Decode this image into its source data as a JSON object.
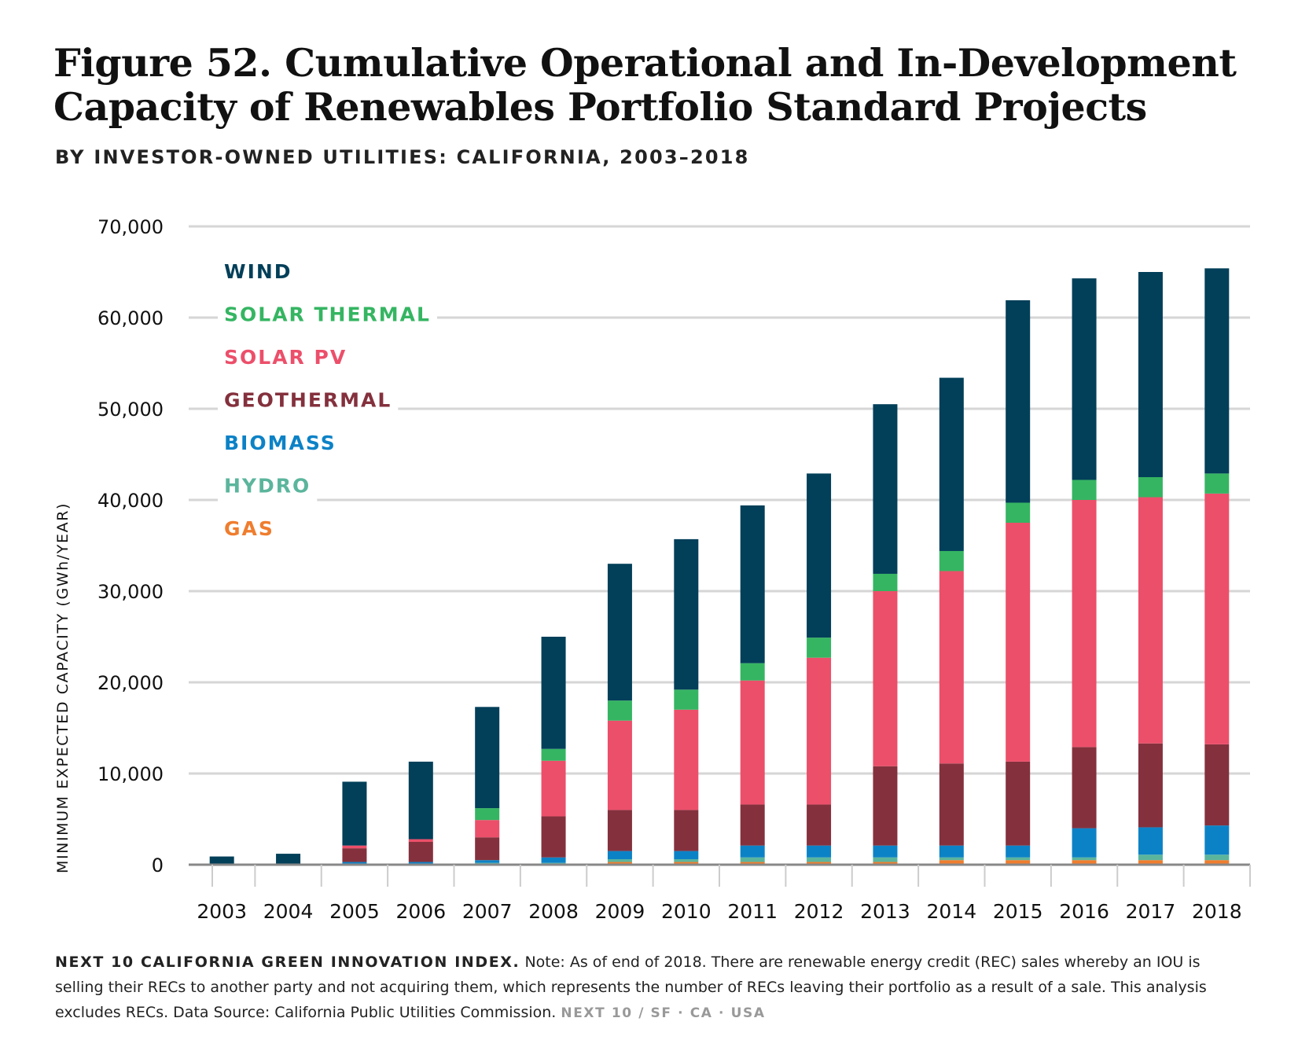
{
  "header": {
    "title_line1": "Figure 52. Cumulative Operational and In-Development",
    "title_line2": "Capacity of Renewables Portfolio Standard Projects",
    "subtitle": "BY INVESTOR-OWNED UTILITIES: CALIFORNIA, 2003–2018"
  },
  "footer": {
    "source_label": "NEXT 10 CALIFORNIA GREEN INNOVATION INDEX.",
    "note": "Note: As of end of 2018. There are renewable energy credit (REC) sales whereby an IOU is selling their RECs to another party and not acquiring them, which represents the number of RECs leaving their portfolio as a result of a sale. This analysis excludes RECs. Data Source: California Public Utilities Commission.",
    "brand": "NEXT 10 / SF · CA · USA"
  },
  "chart_data": {
    "type": "bar",
    "stacked": true,
    "title": "",
    "xlabel": "",
    "ylabel": "MINIMUM EXPECTED CAPACITY (GWh/YEAR)",
    "ylim": [
      0,
      70000
    ],
    "yticks": [
      0,
      10000,
      20000,
      30000,
      40000,
      50000,
      60000,
      70000
    ],
    "ytick_labels": [
      "0",
      "10,000",
      "20,000",
      "30,000",
      "40,000",
      "50,000",
      "60,000",
      "70,000"
    ],
    "grid": true,
    "legend_position": "top-left",
    "categories": [
      "2003",
      "2004",
      "2005",
      "2006",
      "2007",
      "2008",
      "2009",
      "2010",
      "2011",
      "2012",
      "2013",
      "2014",
      "2015",
      "2016",
      "2017",
      "2018"
    ],
    "series": [
      {
        "name": "GAS",
        "color": "#ef7d2e",
        "values": [
          0,
          0,
          0,
          0,
          0,
          0,
          300,
          300,
          300,
          300,
          300,
          500,
          500,
          500,
          500,
          500
        ]
      },
      {
        "name": "HYDRO",
        "color": "#5bb59c",
        "values": [
          0,
          0,
          0,
          0,
          200,
          200,
          300,
          300,
          500,
          500,
          500,
          300,
          300,
          300,
          600,
          600
        ]
      },
      {
        "name": "BIOMASS",
        "color": "#0c82c6",
        "values": [
          0,
          0,
          300,
          300,
          300,
          600,
          900,
          900,
          1300,
          1300,
          1300,
          1300,
          1300,
          3200,
          3000,
          3200
        ]
      },
      {
        "name": "GEOTHERMAL",
        "color": "#84313d",
        "values": [
          0,
          0,
          1500,
          2200,
          2500,
          4500,
          4500,
          4500,
          4500,
          4500,
          8700,
          9000,
          9200,
          8900,
          9200,
          8900
        ]
      },
      {
        "name": "SOLAR PV",
        "color": "#ec4f6a",
        "values": [
          0,
          0,
          300,
          300,
          1900,
          6100,
          9800,
          11000,
          13600,
          16100,
          19200,
          21100,
          26200,
          27100,
          27000,
          27500
        ]
      },
      {
        "name": "SOLAR THERMAL",
        "color": "#35b562",
        "values": [
          0,
          0,
          0,
          0,
          1300,
          1300,
          2200,
          2200,
          1900,
          2200,
          1900,
          2200,
          2200,
          2200,
          2200,
          2200
        ]
      },
      {
        "name": "WIND",
        "color": "#023f59",
        "values": [
          900,
          1200,
          7000,
          8500,
          11100,
          12300,
          15000,
          16500,
          17300,
          18000,
          18600,
          19000,
          22200,
          22100,
          22500,
          22500
        ]
      }
    ],
    "legend_order": [
      "WIND",
      "SOLAR THERMAL",
      "SOLAR PV",
      "GEOTHERMAL",
      "BIOMASS",
      "HYDRO",
      "GAS"
    ]
  }
}
